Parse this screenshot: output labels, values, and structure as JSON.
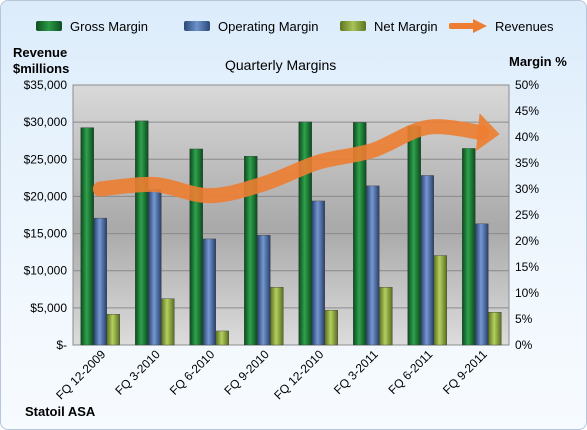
{
  "legend": {
    "items": [
      {
        "label": "Gross Margin",
        "swatch": "gross"
      },
      {
        "label": "Operating Margin",
        "swatch": "op"
      },
      {
        "label": "Net Margin",
        "swatch": "net"
      },
      {
        "label": "Revenues",
        "swatch": "revenue-arrow"
      }
    ]
  },
  "footer": {
    "company": "Statoil ASA"
  },
  "chart_data": {
    "type": "bar",
    "title": "Quarterly Margins",
    "ylabel_left": "Revenue $millions",
    "ylabel_right": "Margin %",
    "categories": [
      "FQ 12-2009",
      "FQ 3-2010",
      "FQ 6-2010",
      "FQ 9-2010",
      "FQ 12-2010",
      "FQ 3-2011",
      "FQ 6-2011",
      "FQ 9-2011"
    ],
    "left_axis": {
      "ylim": [
        0,
        35000
      ],
      "ticks": [
        "$-",
        "$5,000",
        "$10,000",
        "$15,000",
        "$20,000",
        "$25,000",
        "$30,000",
        "$35,000"
      ]
    },
    "right_axis": {
      "ylim": [
        0,
        50
      ],
      "ticks": [
        "0%",
        "5%",
        "10%",
        "15%",
        "20%",
        "25%",
        "30%",
        "35%",
        "40%",
        "45%",
        "50%"
      ]
    },
    "series": [
      {
        "name": "Gross Margin",
        "axis": "right",
        "values": [
          41.8,
          43.1,
          37.7,
          36.3,
          42.9,
          42.8,
          42.1,
          37.8
        ]
      },
      {
        "name": "Operating Margin",
        "axis": "right",
        "values": [
          24.4,
          29.9,
          20.4,
          21.1,
          27.7,
          30.6,
          32.6,
          23.3
        ]
      },
      {
        "name": "Net Margin",
        "axis": "right",
        "values": [
          5.9,
          8.9,
          2.7,
          11.1,
          6.7,
          11.1,
          17.2,
          6.3
        ]
      },
      {
        "name": "Revenues",
        "axis": "left",
        "type": "line-arrow",
        "values": [
          21000,
          21600,
          20100,
          21700,
          24600,
          26200,
          29300,
          28600
        ]
      }
    ],
    "colors": {
      "gross": "#1f7a36",
      "operating": "#4a6fa8",
      "net": "#8faa3b",
      "revenue": "#ed7d31"
    },
    "grid": true
  }
}
